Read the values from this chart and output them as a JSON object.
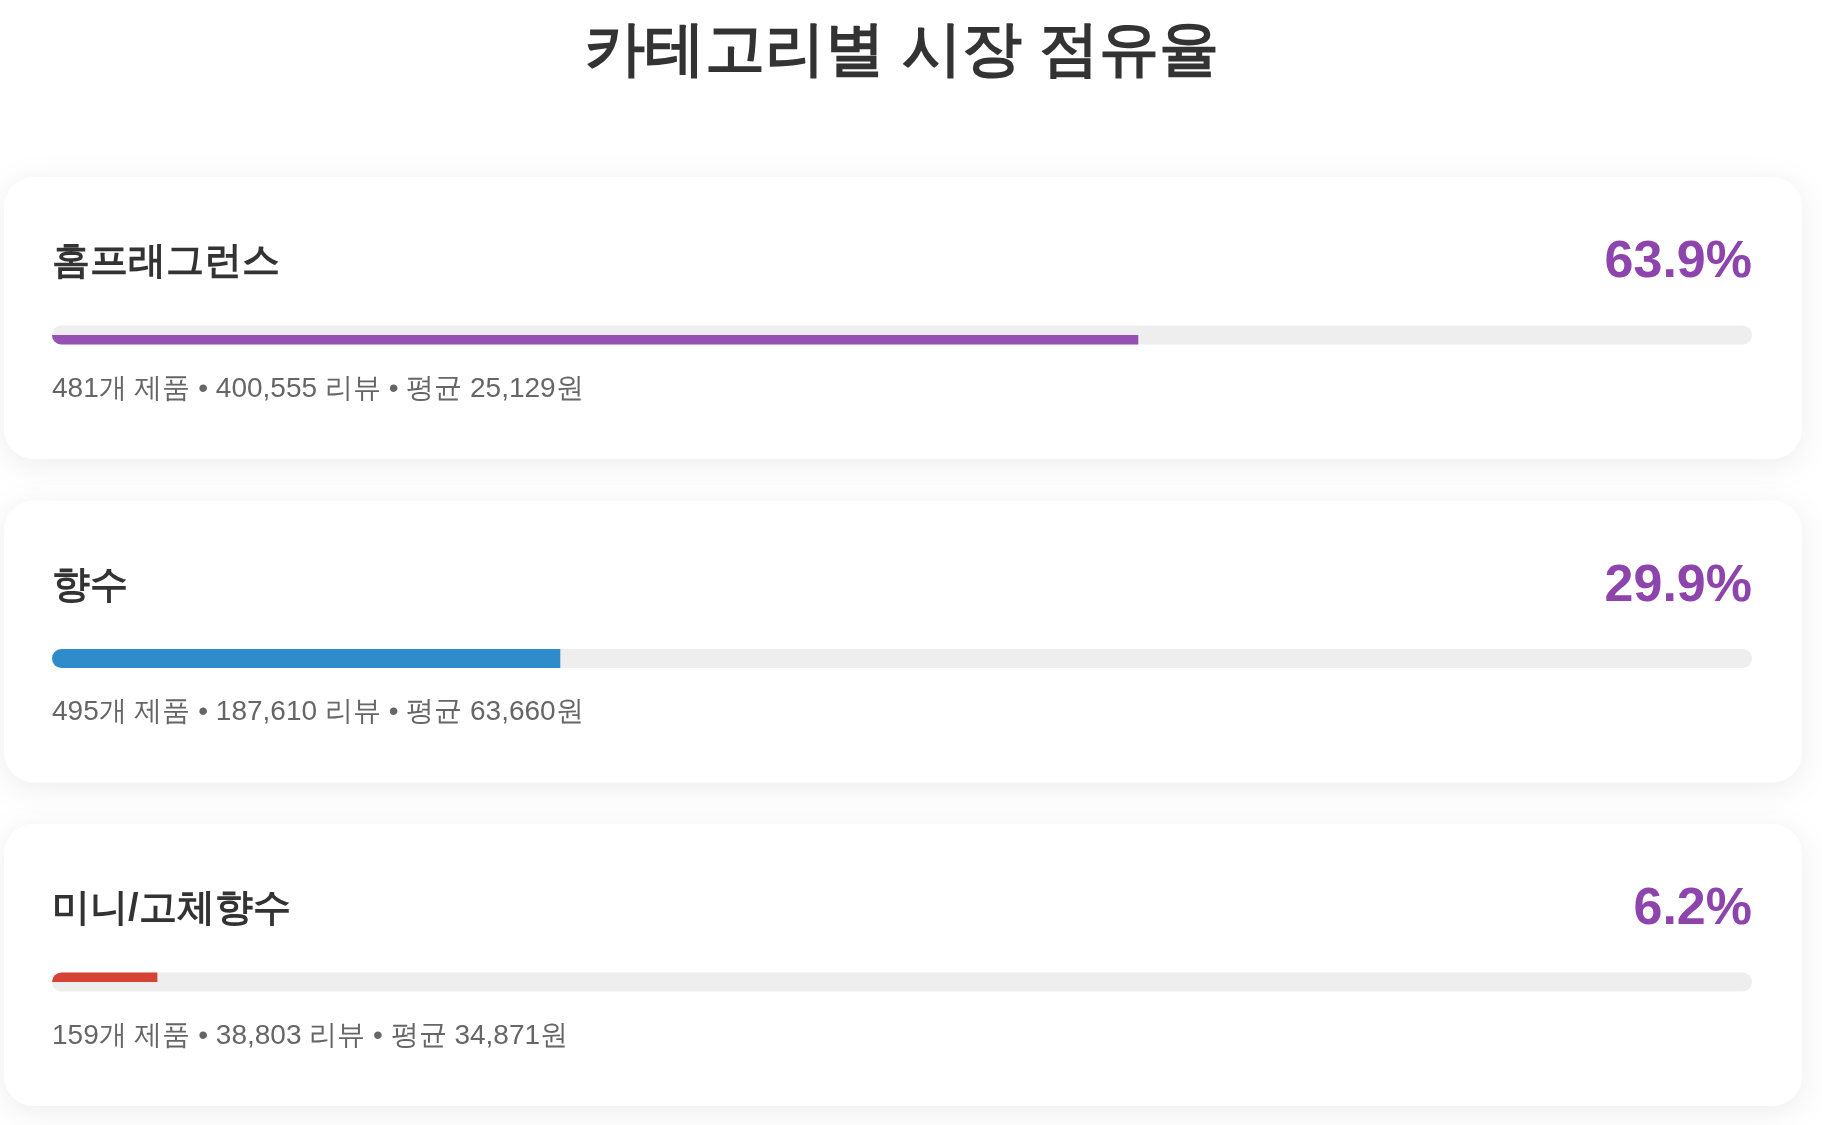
{
  "chart_data": {
    "type": "bar",
    "orientation": "horizontal",
    "title": "카테고리별 시장 점유율",
    "categories": [
      "홈프래그런스",
      "향수",
      "미니/고체향수"
    ],
    "values": [
      63.9,
      29.9,
      6.2
    ],
    "colors": [
      "#9550b3",
      "#2e8cca",
      "#d44333"
    ],
    "xlim": [
      0,
      100
    ],
    "value_labels": [
      "63.9%",
      "29.9%",
      "6.2%"
    ],
    "tick_labels": "y",
    "annotations": [
      "481개 제품 • 400,555 리뷰 • 평균 25,129원",
      "495개 제품 • 187,610 리뷰 • 평균 63,660원",
      "159개 제품 • 38,803 리뷰 • 평균 34,871원"
    ]
  }
}
